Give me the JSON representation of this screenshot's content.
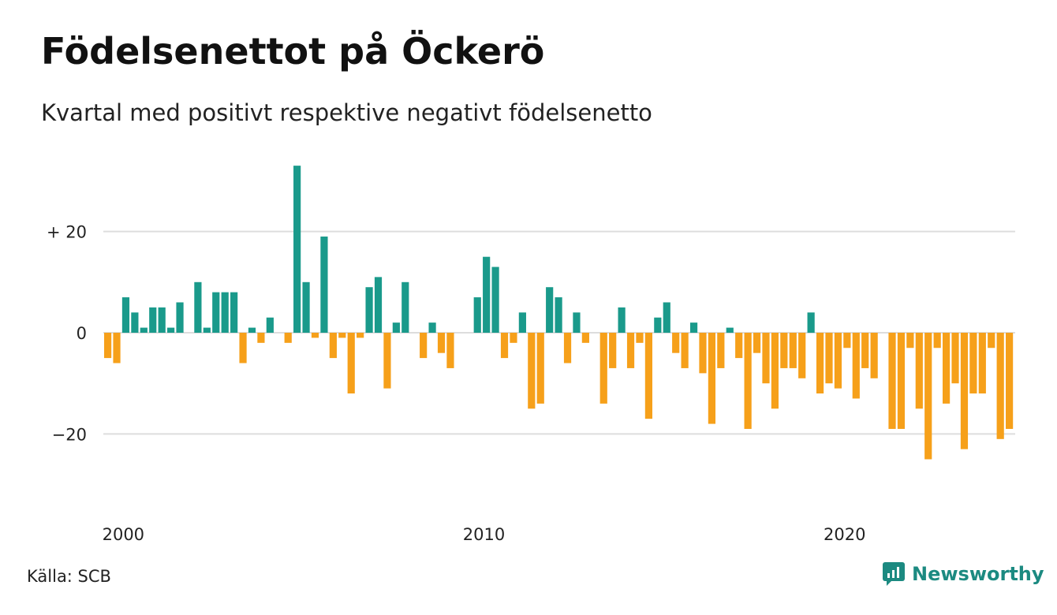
{
  "title": "Födelsenettot på Öckerö",
  "subtitle": "Kvartal med positivt respektive negativt födelsenetto",
  "source": "Källa: SCB",
  "brand": "Newsworthy",
  "colors": {
    "positive": "#1a9a8b",
    "negative": "#f6a01a",
    "grid": "#dddddd",
    "brand": "#1c8a81"
  },
  "chart_data": {
    "type": "bar",
    "xlabel": "",
    "ylabel": "",
    "ylim": [
      -30,
      35
    ],
    "grid": true,
    "y_ticks": [
      {
        "value": 20,
        "label": "+ 20"
      },
      {
        "value": 0,
        "label": "0"
      },
      {
        "value": -20,
        "label": "−20"
      }
    ],
    "x_ticks": [
      {
        "quarter_index": 0,
        "label": "2000"
      },
      {
        "quarter_index": 40,
        "label": "2010"
      },
      {
        "quarter_index": 80,
        "label": "2020"
      }
    ],
    "start_period": "2000 Q1",
    "values": [
      -5,
      -6,
      7,
      4,
      1,
      5,
      5,
      1,
      6,
      0,
      10,
      1,
      8,
      8,
      8,
      -6,
      1,
      -2,
      3,
      0,
      -2,
      33,
      10,
      -1,
      19,
      -5,
      -1,
      -12,
      -1,
      9,
      11,
      -11,
      2,
      10,
      0,
      -5,
      2,
      -4,
      -7,
      0,
      0,
      7,
      15,
      13,
      -5,
      -2,
      4,
      -15,
      -14,
      9,
      7,
      -6,
      4,
      -2,
      0,
      -14,
      -7,
      5,
      -7,
      -2,
      -17,
      3,
      6,
      -4,
      -7,
      2,
      -8,
      -18,
      -7,
      1,
      -5,
      -19,
      -4,
      -10,
      -15,
      -7,
      -7,
      -9,
      4,
      -12,
      -10,
      -11,
      -3,
      -13,
      -7,
      -9,
      0,
      -19,
      -19,
      -3,
      -15,
      -25,
      -3,
      -14,
      -10,
      -23,
      -12,
      -12,
      -3,
      -21,
      -19
    ]
  }
}
